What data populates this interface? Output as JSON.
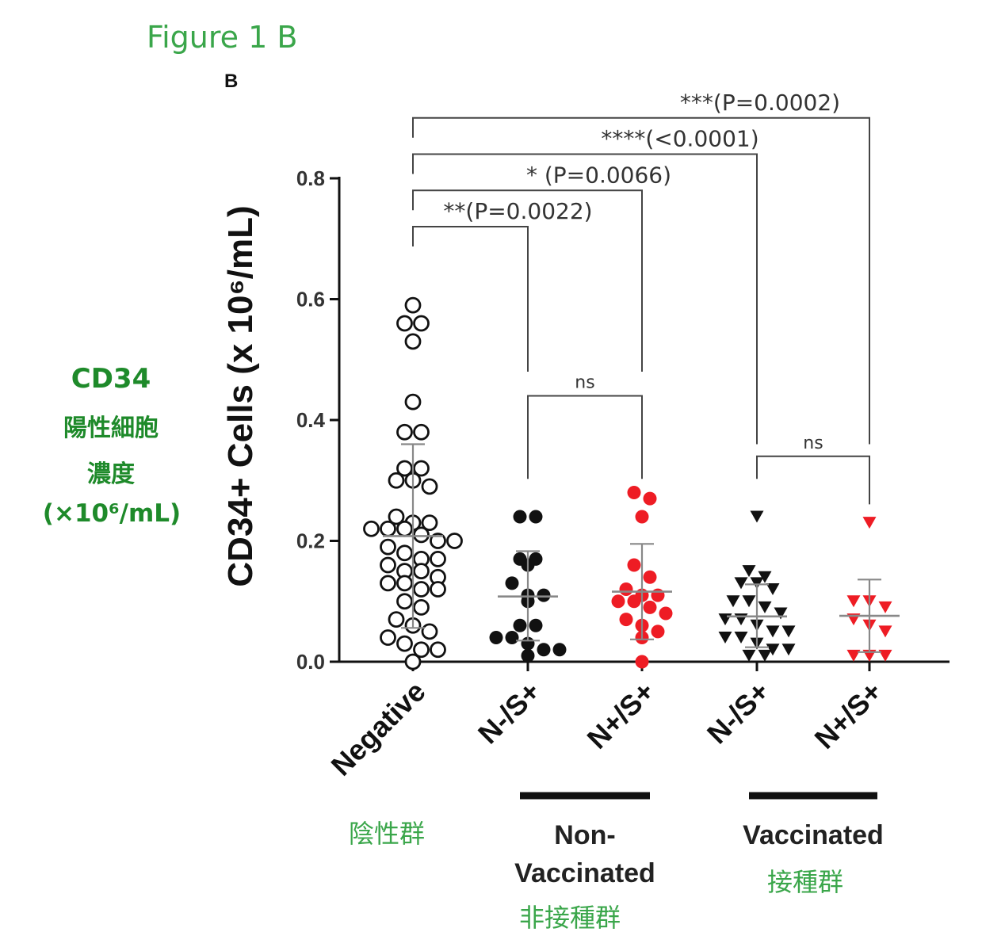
{
  "figure_title": "Figure 1 B",
  "panel_letter": "B",
  "jp_ylabel": {
    "line1": "CD34",
    "line2": "陽性細胞",
    "line3": "濃度",
    "line4": "(×10⁶/mL)"
  },
  "jp_groups": {
    "negative": "陰性群",
    "non_vaccinated": "非接種群",
    "vaccinated": "接種群"
  },
  "colors": {
    "green": "#3aa64a",
    "dark_green": "#1e8a2a",
    "red": "#ee1c24",
    "black": "#111111"
  },
  "chart_data": {
    "type": "scatter",
    "title": "",
    "ylabel": "CD34+ Cells (x 10⁶/mL)",
    "ylim": [
      0,
      0.8
    ],
    "yticks": [
      "0.0",
      "0.2",
      "0.4",
      "0.6",
      "0.8"
    ],
    "categories": [
      "Negative",
      "N-/S+",
      "N+/S+",
      "N-/S+",
      "N+/S+"
    ],
    "group_labels": [
      {
        "name": "Non-Vaccinated",
        "categories": [
          1,
          2
        ]
      },
      {
        "name": "Vaccinated",
        "categories": [
          3,
          4
        ]
      }
    ],
    "series": [
      {
        "category": 0,
        "marker": "open-circle",
        "color": "#111111",
        "mean": 0.208,
        "sd_low": 0.056,
        "sd_high": 0.36,
        "values": [
          0.59,
          0.56,
          0.56,
          0.53,
          0.43,
          0.38,
          0.38,
          0.32,
          0.32,
          0.3,
          0.3,
          0.29,
          0.24,
          0.23,
          0.23,
          0.22,
          0.22,
          0.22,
          0.21,
          0.2,
          0.2,
          0.19,
          0.18,
          0.17,
          0.17,
          0.16,
          0.15,
          0.15,
          0.14,
          0.13,
          0.13,
          0.12,
          0.12,
          0.1,
          0.09,
          0.07,
          0.06,
          0.05,
          0.04,
          0.03,
          0.02,
          0.02,
          0.0
        ]
      },
      {
        "category": 1,
        "marker": "circle",
        "color": "#111111",
        "mean": 0.108,
        "sd_low": 0.035,
        "sd_high": 0.183,
        "values": [
          0.24,
          0.24,
          0.17,
          0.17,
          0.16,
          0.13,
          0.11,
          0.11,
          0.1,
          0.06,
          0.06,
          0.04,
          0.04,
          0.03,
          0.02,
          0.02,
          0.01
        ]
      },
      {
        "category": 2,
        "marker": "circle",
        "color": "#ee1c24",
        "mean": 0.116,
        "sd_low": 0.037,
        "sd_high": 0.195,
        "values": [
          0.28,
          0.27,
          0.24,
          0.16,
          0.14,
          0.12,
          0.11,
          0.11,
          0.1,
          0.1,
          0.09,
          0.08,
          0.07,
          0.06,
          0.05,
          0.04,
          0.0
        ]
      },
      {
        "category": 3,
        "marker": "triangle-down",
        "color": "#111111",
        "mean": 0.075,
        "sd_low": 0.024,
        "sd_high": 0.128,
        "values": [
          0.24,
          0.15,
          0.14,
          0.13,
          0.13,
          0.12,
          0.1,
          0.1,
          0.09,
          0.08,
          0.07,
          0.07,
          0.06,
          0.05,
          0.05,
          0.04,
          0.04,
          0.03,
          0.02,
          0.02,
          0.01,
          0.01
        ]
      },
      {
        "category": 4,
        "marker": "triangle-down",
        "color": "#ee1c24",
        "mean": 0.076,
        "sd_low": 0.016,
        "sd_high": 0.136,
        "values": [
          0.23,
          0.1,
          0.1,
          0.09,
          0.07,
          0.06,
          0.05,
          0.01,
          0.01,
          0.01
        ]
      }
    ],
    "comparisons": [
      {
        "from": 0,
        "to": 4,
        "y": 0.9,
        "label": "***(P=0.0002)"
      },
      {
        "from": 0,
        "to": 3,
        "y": 0.84,
        "label": "****(<0.0001)"
      },
      {
        "from": 0,
        "to": 2,
        "y": 0.78,
        "label": "*  (P=0.0066)"
      },
      {
        "from": 0,
        "to": 1,
        "y": 0.72,
        "label": "**(P=0.0022)"
      },
      {
        "from": 1,
        "to": 2,
        "y": 0.44,
        "label": "ns"
      },
      {
        "from": 3,
        "to": 4,
        "y": 0.34,
        "label": "ns"
      }
    ]
  }
}
